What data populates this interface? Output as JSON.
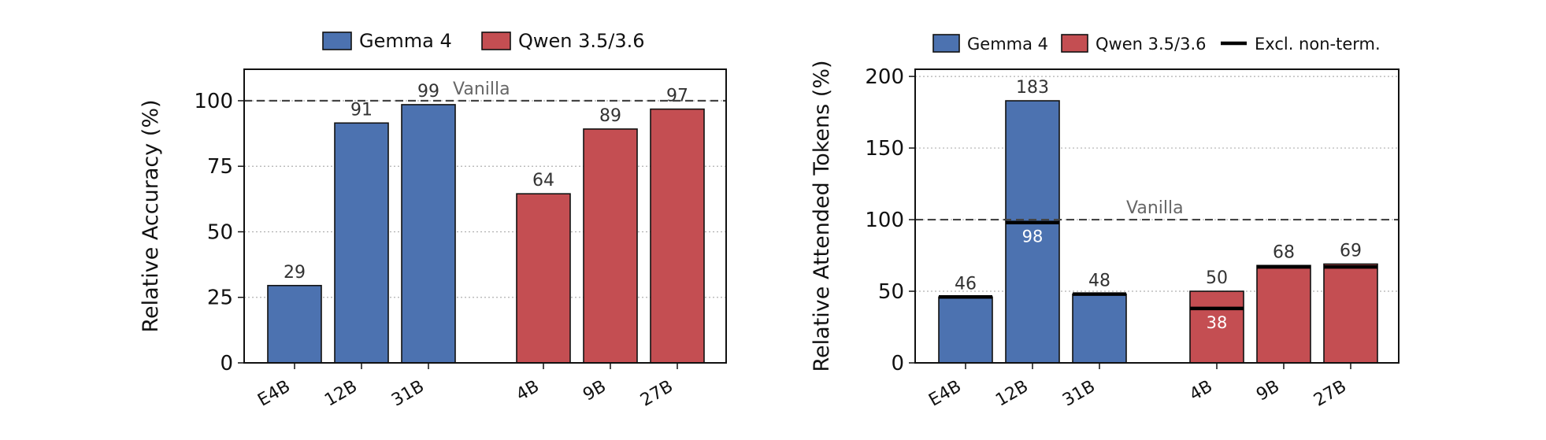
{
  "chart_data": [
    {
      "type": "bar",
      "ylabel": "Relative Accuracy (%)",
      "ylim": [
        0,
        112
      ],
      "yticks": [
        0,
        25,
        50,
        75,
        100
      ],
      "grid": "horizontal dotted",
      "legend_position": "top",
      "reference_line": {
        "value": 100,
        "label": "Vanilla"
      },
      "legend": [
        {
          "name": "Gemma 4",
          "color": "#4c72b0",
          "kind": "patch"
        },
        {
          "name": "Qwen 3.5/3.6",
          "color": "#c44e52",
          "kind": "patch"
        }
      ],
      "groups": [
        {
          "name": "Gemma 4",
          "color": "#4c72b0",
          "categories": [
            "E4B",
            "12B",
            "31B"
          ],
          "values": [
            29.5,
            91.5,
            98.5
          ],
          "labels": [
            "29",
            "91",
            "99"
          ]
        },
        {
          "name": "Qwen 3.5/3.6",
          "color": "#c44e52",
          "categories": [
            "4B",
            "9B",
            "27B"
          ],
          "values": [
            64.5,
            89.2,
            96.8
          ],
          "labels": [
            "64",
            "89",
            "97"
          ]
        }
      ]
    },
    {
      "type": "bar",
      "ylabel": "Relative Attended Tokens (%)",
      "ylim": [
        0,
        205
      ],
      "yticks": [
        0,
        50,
        100,
        150,
        200
      ],
      "grid": "horizontal dotted",
      "legend_position": "top",
      "reference_line": {
        "value": 100,
        "label": "Vanilla"
      },
      "legend": [
        {
          "name": "Gemma 4",
          "color": "#4c72b0",
          "kind": "patch"
        },
        {
          "name": "Qwen 3.5/3.6",
          "color": "#c44e52",
          "kind": "patch"
        },
        {
          "name": "Excl. non-term.",
          "color": "#000000",
          "kind": "line"
        }
      ],
      "groups": [
        {
          "name": "Gemma 4",
          "color": "#4c72b0",
          "categories": [
            "E4B",
            "12B",
            "31B"
          ],
          "values": [
            46,
            183,
            48
          ],
          "labels": [
            "46",
            "183",
            "48"
          ],
          "excl_non_term": [
            46,
            98,
            48
          ],
          "excl_labels": [
            "",
            "98",
            ""
          ]
        },
        {
          "name": "Qwen 3.5/3.6",
          "color": "#c44e52",
          "categories": [
            "4B",
            "9B",
            "27B"
          ],
          "values": [
            50,
            68,
            69
          ],
          "labels": [
            "50",
            "68",
            "69"
          ],
          "excl_non_term": [
            38,
            67,
            67
          ],
          "excl_labels": [
            "38",
            "",
            ""
          ]
        }
      ]
    }
  ]
}
